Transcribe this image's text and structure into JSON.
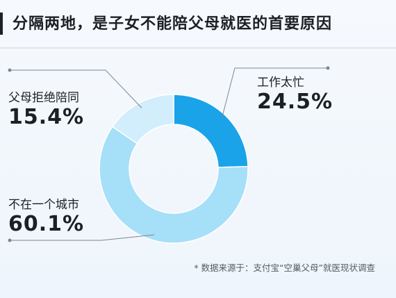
{
  "title": "分隔两地，是子女不能陪父母就医的首要原因",
  "source": "* 数据来源于：支付宝“空巢父母”就医现状调查",
  "chart_data": {
    "type": "pie",
    "donut": true,
    "slices": [
      {
        "label": "工作太忙",
        "value": 24.5,
        "value_label": "24.5%",
        "color": "#1aa3e8"
      },
      {
        "label": "不在一个城市",
        "value": 60.1,
        "value_label": "60.1%",
        "color": "#a6dff8"
      },
      {
        "label": "父母拒绝陪同",
        "value": 15.4,
        "value_label": "15.4%",
        "color": "#d2edfb"
      }
    ]
  }
}
